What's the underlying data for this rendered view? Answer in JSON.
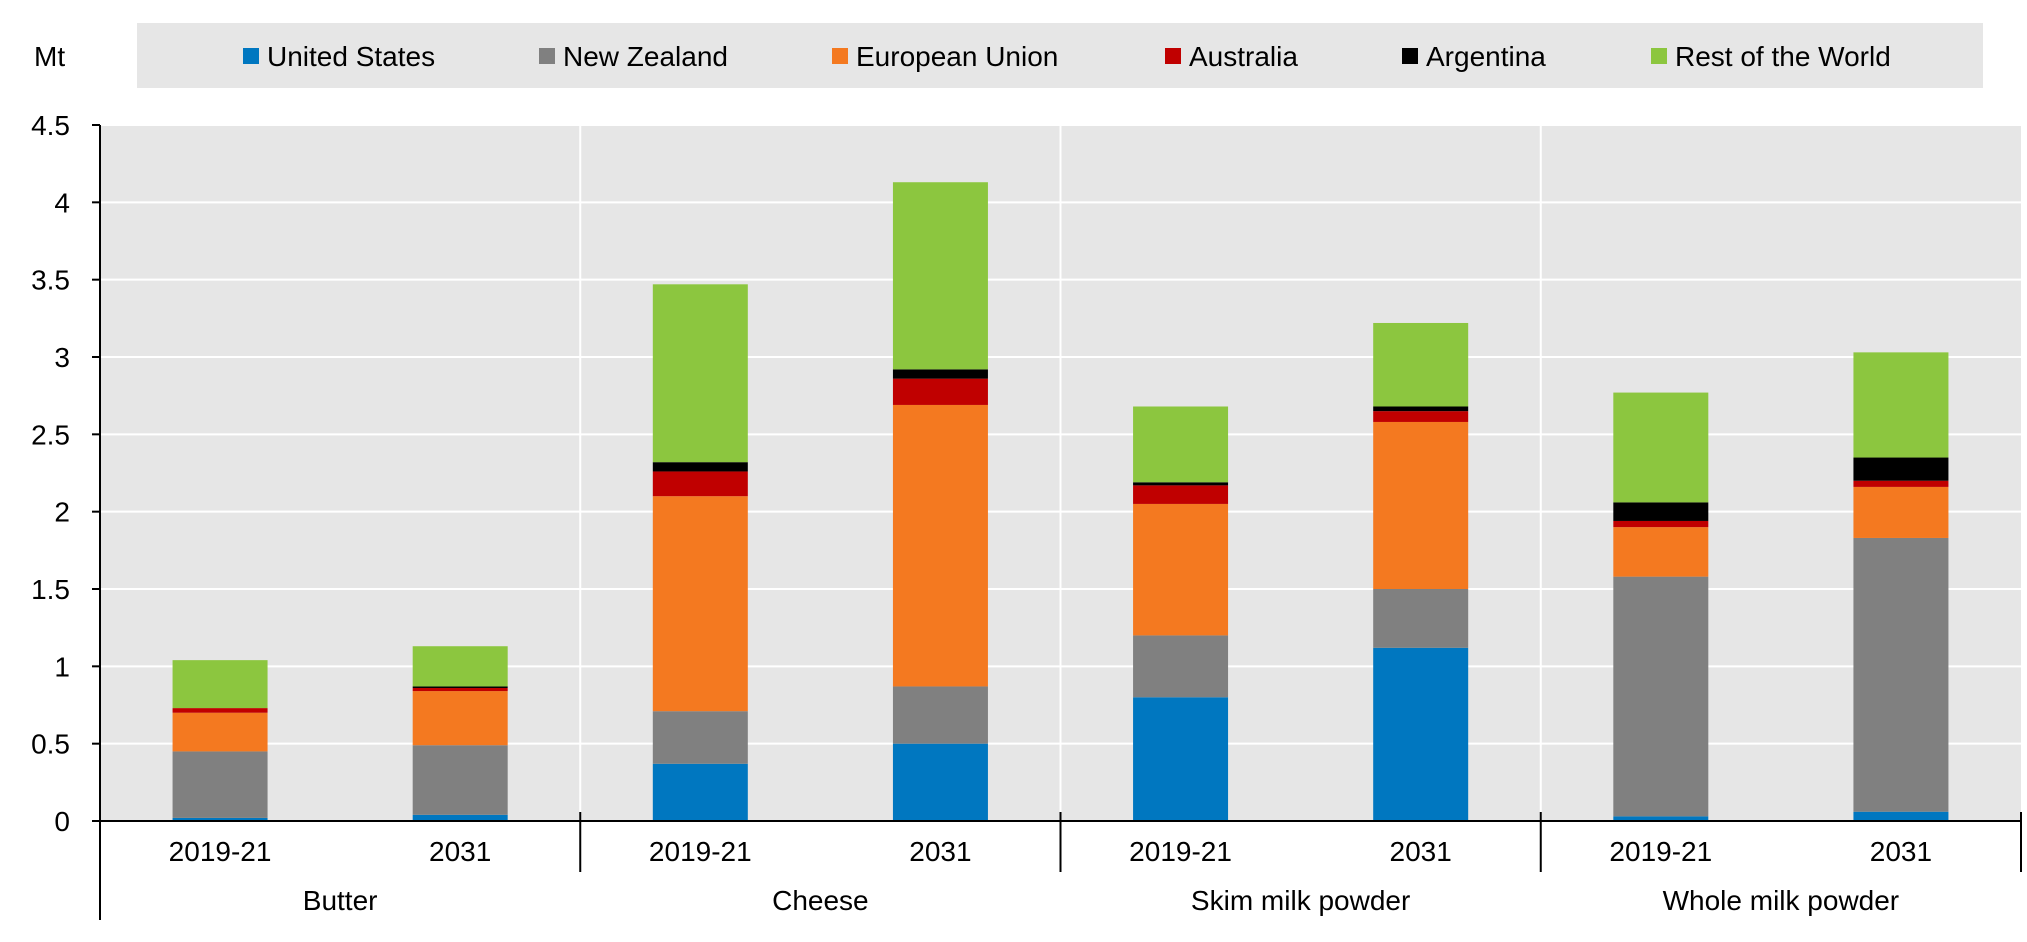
{
  "chart_data": {
    "type": "bar",
    "stacked": true,
    "unit_label": "Mt",
    "ylim": [
      0,
      4.5
    ],
    "yticks": [
      "0",
      "0.5",
      "1",
      "1.5",
      "2",
      "2.5",
      "3",
      "3.5",
      "4",
      "4.5"
    ],
    "grid": true,
    "legend_position": "top",
    "groups": [
      {
        "label": "Butter",
        "categories": [
          "2019-21",
          "2031"
        ]
      },
      {
        "label": "Cheese",
        "categories": [
          "2019-21",
          "2031"
        ]
      },
      {
        "label": "Skim milk powder",
        "categories": [
          "2019-21",
          "2031"
        ]
      },
      {
        "label": "Whole milk powder",
        "categories": [
          "2019-21",
          "2031"
        ]
      }
    ],
    "series": [
      {
        "name": "United States",
        "color": "#0077c0",
        "values": [
          0.02,
          0.04,
          0.37,
          0.5,
          0.8,
          1.12,
          0.03,
          0.06
        ]
      },
      {
        "name": "New Zealand",
        "color": "#808080",
        "values": [
          0.43,
          0.45,
          0.34,
          0.37,
          0.4,
          0.38,
          1.55,
          1.77
        ]
      },
      {
        "name": "European Union",
        "color": "#f47920",
        "values": [
          0.25,
          0.35,
          1.39,
          1.82,
          0.85,
          1.08,
          0.32,
          0.33
        ]
      },
      {
        "name": "Australia",
        "color": "#c00000",
        "values": [
          0.03,
          0.02,
          0.16,
          0.17,
          0.12,
          0.07,
          0.04,
          0.04
        ]
      },
      {
        "name": "Argentina",
        "color": "#000000",
        "values": [
          0.0,
          0.01,
          0.06,
          0.06,
          0.02,
          0.03,
          0.12,
          0.15
        ]
      },
      {
        "name": "Rest of the World",
        "color": "#8cc63f",
        "values": [
          0.31,
          0.26,
          1.15,
          1.21,
          0.49,
          0.54,
          0.71,
          0.68
        ]
      }
    ]
  }
}
